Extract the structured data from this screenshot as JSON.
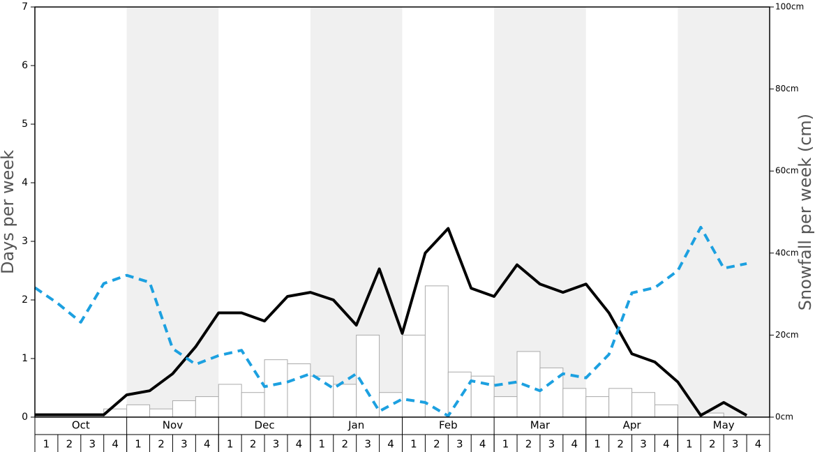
{
  "chart_data": {
    "type": "combo",
    "y_label": "Days per week",
    "y2_label": "Snowfall per week (cm)",
    "months": [
      "Oct",
      "Nov",
      "Dec",
      "Jan",
      "Feb",
      "Mar",
      "Apr",
      "May"
    ],
    "categories": [
      1,
      2,
      3,
      4,
      1,
      2,
      3,
      4,
      1,
      2,
      3,
      4,
      1,
      2,
      3,
      4,
      1,
      2,
      3,
      4,
      1,
      2,
      3,
      4,
      1,
      2,
      3,
      4,
      1,
      2,
      3,
      4
    ],
    "ylim": [
      0,
      7
    ],
    "yticks": [
      0,
      1,
      2,
      3,
      4,
      5,
      6,
      7
    ],
    "y2lim": [
      0,
      100
    ],
    "y2ticks": [
      {
        "value": 0,
        "label": "0cm"
      },
      {
        "value": 20,
        "label": "20cm"
      },
      {
        "value": 40,
        "label": "40cm"
      },
      {
        "value": 60,
        "label": "60cm"
      },
      {
        "value": 80,
        "label": "80cm"
      },
      {
        "value": 100,
        "label": "100cm"
      }
    ],
    "band_color": "#f0f0f0",
    "series": [
      {
        "type": "bar",
        "axis": "y2",
        "color": "#ffffff",
        "edge_color": "#aaaaaa",
        "values": [
          0,
          0,
          0,
          2,
          3,
          2,
          4,
          5,
          8,
          6,
          14,
          13,
          10,
          8,
          20,
          6,
          20,
          32,
          11,
          10,
          5,
          16,
          12,
          7,
          5,
          7,
          6,
          3,
          0,
          1,
          0,
          0
        ]
      },
      {
        "type": "line",
        "color": "#000000",
        "dashed": false,
        "values": [
          0.04,
          0.04,
          0.04,
          0.04,
          0.38,
          0.45,
          0.74,
          1.2,
          1.78,
          1.78,
          1.64,
          2.06,
          2.13,
          2.0,
          1.57,
          2.53,
          1.43,
          2.8,
          3.22,
          2.2,
          2.06,
          2.6,
          2.27,
          2.13,
          2.27,
          1.78,
          1.08,
          0.94,
          0.6,
          0.03,
          0.25,
          0.03
        ]
      },
      {
        "type": "line",
        "color": "#1ca0e0",
        "dashed": true,
        "values": [
          2.21,
          1.94,
          1.62,
          2.28,
          2.42,
          2.3,
          1.17,
          0.9,
          1.05,
          1.14,
          0.52,
          0.6,
          0.74,
          0.49,
          0.74,
          0.1,
          0.31,
          0.25,
          0.02,
          0.62,
          0.54,
          0.6,
          0.45,
          0.74,
          0.67,
          1.07,
          2.12,
          2.21,
          2.5,
          3.24,
          2.54,
          2.62
        ]
      }
    ]
  }
}
